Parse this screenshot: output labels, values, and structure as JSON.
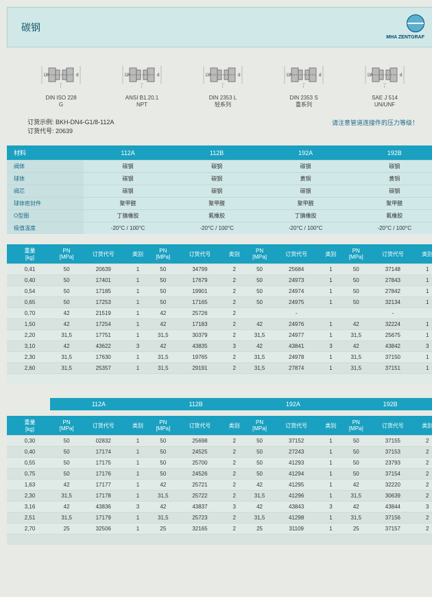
{
  "header": {
    "title": "碳钢",
    "brand": "MHA ZENTGRAF"
  },
  "diagrams": [
    {
      "label1": "DIN ISO 228",
      "label2": "G"
    },
    {
      "label1": "ANSI B1.20.1",
      "label2": "NPT"
    },
    {
      "label1": "DIN 2353 L",
      "label2": "轻系列"
    },
    {
      "label1": "DIN 2353 S",
      "label2": "重系列"
    },
    {
      "label1": "SAE J 514",
      "label2": "UN/UNF"
    }
  ],
  "order": {
    "example_label": "订货示例:",
    "example": "BKH-DN4-G1/8-112A",
    "code_label": "订货代号:",
    "code": "20639",
    "note": "请注意管道连接件的压力等级！"
  },
  "material": {
    "header": [
      "材料",
      "112A",
      "112B",
      "192A",
      "192B"
    ],
    "rows": [
      [
        "阀体",
        "碳钢",
        "碳钢",
        "碳钢",
        "碳钢"
      ],
      [
        "球体",
        "碳钢",
        "碳钢",
        "黄铜",
        "黄铜"
      ],
      [
        "阀芯",
        "碳钢",
        "碳钢",
        "碳钢",
        "碳钢"
      ],
      [
        "球体密封件",
        "聚甲醛",
        "聚甲醛",
        "聚甲醛",
        "聚甲醛"
      ],
      [
        "O型圈",
        "丁腈橡胶",
        "氟橡胶",
        "丁腈橡胶",
        "氟橡胶"
      ],
      [
        "极值温度",
        "-20°C / 100°C",
        "-20°C / 100°C",
        "-20°C / 100°C",
        "-20°C / 100°C"
      ]
    ]
  },
  "data1": {
    "header": [
      "重量\n[kg]",
      "PN\n[MPa]",
      "订货代号",
      "类别",
      "PN\n[MPa]",
      "订货代号",
      "类别",
      "PN\n[MPa]",
      "订货代号",
      "类别",
      "PN\n[MPa]",
      "订货代号",
      "类别"
    ],
    "rows": [
      [
        "0,41",
        "50",
        "20639",
        "1",
        "50",
        "34799",
        "2",
        "50",
        "25684",
        "1",
        "50",
        "37148",
        "1"
      ],
      [
        "0,40",
        "50",
        "17401",
        "1",
        "50",
        "17679",
        "2",
        "50",
        "24973",
        "1",
        "50",
        "27843",
        "1"
      ],
      [
        "0,54",
        "50",
        "17185",
        "1",
        "50",
        "19901",
        "2",
        "50",
        "24974",
        "1",
        "50",
        "27842",
        "1"
      ],
      [
        "0,65",
        "50",
        "17253",
        "1",
        "50",
        "17165",
        "2",
        "50",
        "24975",
        "1",
        "50",
        "32134",
        "1"
      ],
      [
        "0,70",
        "42",
        "21519",
        "1",
        "42",
        "25726",
        "2",
        "",
        "-",
        "",
        "",
        "-",
        ""
      ],
      [
        "1,50",
        "42",
        "17254",
        "1",
        "42",
        "17183",
        "2",
        "42",
        "24976",
        "1",
        "42",
        "32224",
        "1"
      ],
      [
        "2,20",
        "31,5",
        "17751",
        "1",
        "31,5",
        "30379",
        "2",
        "31,5",
        "24977",
        "1",
        "31,5",
        "25675",
        "1"
      ],
      [
        "3,10",
        "42",
        "43622",
        "3",
        "42",
        "43835",
        "3",
        "42",
        "43841",
        "3",
        "42",
        "43842",
        "3"
      ],
      [
        "2,30",
        "31,5",
        "17630",
        "1",
        "31,5",
        "19765",
        "2",
        "31,5",
        "24978",
        "1",
        "31,5",
        "37150",
        "1"
      ],
      [
        "2,60",
        "31,5",
        "25357",
        "1",
        "31,5",
        "29191",
        "2",
        "31,5",
        "27874",
        "1",
        "31,5",
        "37151",
        "1"
      ]
    ]
  },
  "variant_header": [
    "",
    "112A",
    "112B",
    "192A",
    "192B"
  ],
  "data2": {
    "header": [
      "重量\n[kg]",
      "PN\n[MPa]",
      "订货代号",
      "类别",
      "PN\n[MPa]",
      "订货代号",
      "类别",
      "PN\n[MPa]",
      "订货代号",
      "类别",
      "PN\n[MPa]",
      "订货代号",
      "类别"
    ],
    "rows": [
      [
        "0,30",
        "50",
        "02832",
        "1",
        "50",
        "25698",
        "2",
        "50",
        "37152",
        "1",
        "50",
        "37155",
        "2"
      ],
      [
        "0,40",
        "50",
        "17174",
        "1",
        "50",
        "24525",
        "2",
        "50",
        "27243",
        "1",
        "50",
        "37153",
        "2"
      ],
      [
        "0,55",
        "50",
        "17175",
        "1",
        "50",
        "25700",
        "2",
        "50",
        "41293",
        "1",
        "50",
        "23793",
        "2"
      ],
      [
        "0,75",
        "50",
        "17176",
        "1",
        "50",
        "24526",
        "2",
        "50",
        "41294",
        "1",
        "50",
        "37154",
        "2"
      ],
      [
        "1,63",
        "42",
        "17177",
        "1",
        "42",
        "25721",
        "2",
        "42",
        "41295",
        "1",
        "42",
        "32220",
        "2"
      ],
      [
        "2,30",
        "31,5",
        "17178",
        "1",
        "31,5",
        "25722",
        "2",
        "31,5",
        "41296",
        "1",
        "31,5",
        "30639",
        "2"
      ],
      [
        "3,16",
        "42",
        "43836",
        "3",
        "42",
        "43837",
        "3",
        "42",
        "43843",
        "3",
        "42",
        "43844",
        "3"
      ],
      [
        "2,51",
        "31,5",
        "17179",
        "1",
        "31,5",
        "25723",
        "2",
        "31,5",
        "41298",
        "1",
        "31,5",
        "37156",
        "2"
      ],
      [
        "2,70",
        "25",
        "32506",
        "1",
        "25",
        "32165",
        "2",
        "25",
        "31109",
        "1",
        "25",
        "37157",
        "2"
      ]
    ]
  }
}
